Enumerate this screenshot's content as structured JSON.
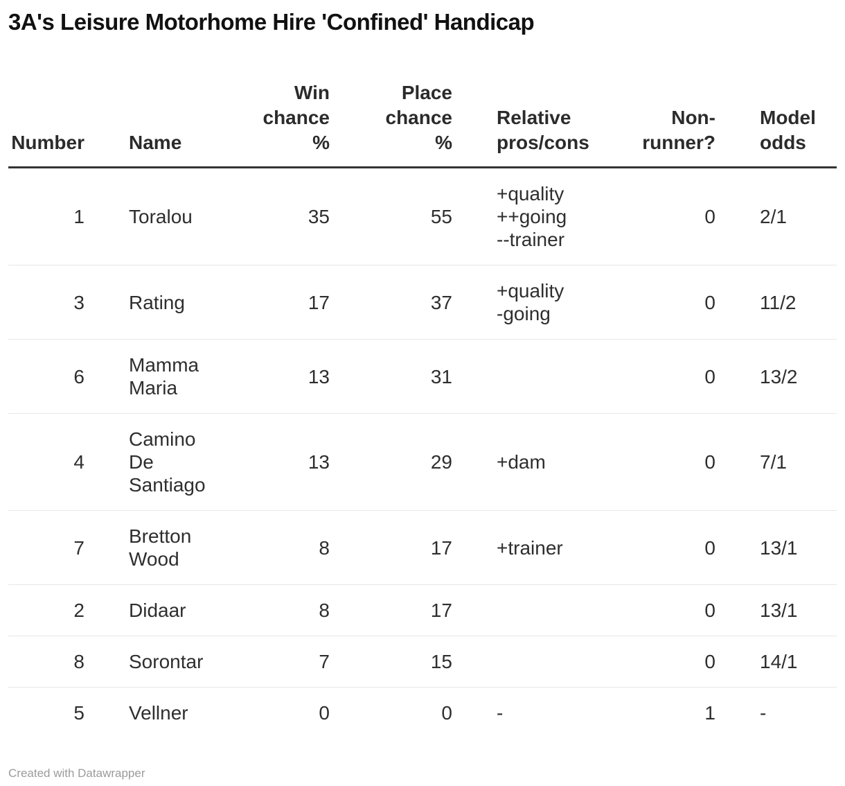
{
  "title": "3A's Leisure Motorhome Hire 'Confined' Handicap",
  "footer": {
    "attribution": "Created with Datawrapper"
  },
  "colors": {
    "title_text": "#111111",
    "body_text": "#2e2e2e",
    "header_rule": "#333333",
    "row_divider": "#e7e7e7",
    "attribution_text": "#9b9b9b",
    "background": "#ffffff"
  },
  "chart_data": {
    "type": "table",
    "title": "3A's Leisure Motorhome Hire 'Confined' Handicap",
    "columns": [
      {
        "key": "number",
        "label": "Number",
        "align": "right",
        "gutter": false
      },
      {
        "key": "name",
        "label": "Name",
        "align": "left",
        "gutter": true
      },
      {
        "key": "win",
        "label": "Win\nchance\n%",
        "align": "right",
        "gutter": false
      },
      {
        "key": "place",
        "label": "Place\nchance\n%",
        "align": "right",
        "gutter": false
      },
      {
        "key": "pros",
        "label": "Relative\npros/cons",
        "align": "left",
        "gutter": true
      },
      {
        "key": "nonrunner",
        "label": "Non-\nrunner?",
        "align": "right",
        "gutter": false
      },
      {
        "key": "odds",
        "label": "Model\nodds",
        "align": "left",
        "gutter": true
      }
    ],
    "rows": [
      {
        "number": "1",
        "name": "Toralou",
        "win": "35",
        "place": "55",
        "pros": "+quality\n++going\n--trainer",
        "nonrunner": "0",
        "odds": "2/1"
      },
      {
        "number": "3",
        "name": "Rating",
        "win": "17",
        "place": "37",
        "pros": "+quality\n-going",
        "nonrunner": "0",
        "odds": "11/2"
      },
      {
        "number": "6",
        "name": "Mamma Maria",
        "win": "13",
        "place": "31",
        "pros": "",
        "nonrunner": "0",
        "odds": "13/2"
      },
      {
        "number": "4",
        "name": "Camino De Santiago",
        "win": "13",
        "place": "29",
        "pros": "+dam",
        "nonrunner": "0",
        "odds": "7/1"
      },
      {
        "number": "7",
        "name": "Bretton Wood",
        "win": "8",
        "place": "17",
        "pros": "+trainer",
        "nonrunner": "0",
        "odds": "13/1"
      },
      {
        "number": "2",
        "name": "Didaar",
        "win": "8",
        "place": "17",
        "pros": "",
        "nonrunner": "0",
        "odds": "13/1"
      },
      {
        "number": "8",
        "name": "Sorontar",
        "win": "7",
        "place": "15",
        "pros": "",
        "nonrunner": "0",
        "odds": "14/1"
      },
      {
        "number": "5",
        "name": "Vellner",
        "win": "0",
        "place": "0",
        "pros": "-",
        "nonrunner": "1",
        "odds": "-"
      }
    ]
  }
}
